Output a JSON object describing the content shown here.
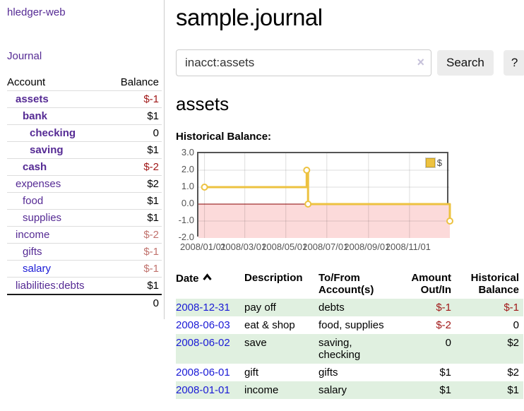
{
  "sidebar": {
    "brand": "hledger-web",
    "journal_link": "Journal",
    "table": {
      "header_account": "Account",
      "header_balance": "Balance",
      "rows": [
        {
          "name": "assets",
          "balance": "$-1",
          "name_class": "ind1 cur",
          "balance_class": "cur neg-strong"
        },
        {
          "name": "bank",
          "balance": "$1",
          "name_class": "ind2 cur",
          "balance_class": "cur"
        },
        {
          "name": "checking",
          "balance": "0",
          "name_class": "ind3 cur",
          "balance_class": "cur"
        },
        {
          "name": "saving",
          "balance": "$1",
          "name_class": "ind3 cur",
          "balance_class": "cur"
        },
        {
          "name": "cash",
          "balance": "$-2",
          "name_class": "ind2 cur",
          "balance_class": "cur neg-strong"
        },
        {
          "name": "expenses",
          "balance": "$2",
          "name_class": "ind1"
        },
        {
          "name": "food",
          "balance": "$1",
          "name_class": "ind2"
        },
        {
          "name": "supplies",
          "balance": "$1",
          "name_class": "ind2"
        },
        {
          "name": "income",
          "balance": "$-2",
          "name_class": "ind1",
          "balance_class": "neg-soft"
        },
        {
          "name": "gifts",
          "balance": "$-1",
          "name_class": "ind2",
          "balance_class": "neg-soft"
        },
        {
          "name": "salary",
          "balance": "$-1",
          "name_class": "ind2 blue",
          "balance_class": "neg-soft"
        },
        {
          "name": "liabilities:debts",
          "balance": "$1",
          "name_class": "ind1"
        }
      ],
      "total": "0"
    }
  },
  "main": {
    "title": "sample.journal",
    "search": {
      "value": "inacct:assets",
      "clear_label": "×",
      "button_label": "Search",
      "help_label": "?"
    },
    "account_heading": "assets",
    "chart_label": "Historical Balance:",
    "register": {
      "headers": {
        "date": "Date",
        "description": "Description",
        "accounts": "To/From\nAccount(s)",
        "amount": "Amount\nOut/In",
        "balance": "Historical\nBalance"
      },
      "rows": [
        {
          "date": "2008-12-31",
          "description": "pay off",
          "accounts": "debts",
          "amount": "$-1",
          "balance": "$-1",
          "amount_class": "neg",
          "balance_class": "neg",
          "row_class": "odd"
        },
        {
          "date": "2008-06-03",
          "description": "eat & shop",
          "accounts": "food, supplies",
          "amount": "$-2",
          "balance": "0",
          "amount_class": "neg"
        },
        {
          "date": "2008-06-02",
          "description": "save",
          "accounts": "saving,\nchecking",
          "amount": "0",
          "balance": "$2",
          "row_class": "odd"
        },
        {
          "date": "2008-06-01",
          "description": "gift",
          "accounts": "gifts",
          "amount": "$1",
          "balance": "$2"
        },
        {
          "date": "2008-01-01",
          "description": "income",
          "accounts": "salary",
          "amount": "$1",
          "balance": "$1",
          "row_class": "odd"
        }
      ]
    }
  },
  "chart_data": {
    "type": "line",
    "step": true,
    "title": "Historical Balance:",
    "series": [
      {
        "name": "$",
        "color": "#edc240",
        "points": [
          [
            "2008-01-01",
            1
          ],
          [
            "2008-06-01",
            2
          ],
          [
            "2008-06-03",
            0
          ],
          [
            "2008-12-31",
            -1
          ]
        ]
      }
    ],
    "xlim": [
      "2007-12-23",
      "2008-12-31"
    ],
    "ylim": [
      -2,
      3
    ],
    "x_ticks": [
      "2008/01/01",
      "2008/03/01",
      "2008/05/01",
      "2008/07/01",
      "2008/09/01",
      "2008/11/01"
    ],
    "y_ticks": [
      3.0,
      2.0,
      1.0,
      0.0,
      -1.0,
      -2.0
    ],
    "negative_fill": "#fcdada",
    "zero_line_color": "#880000",
    "grid_color": "rgba(0,0,0,0.13)",
    "marker": "open-circle",
    "legend_position": "top-right",
    "grid": true
  }
}
